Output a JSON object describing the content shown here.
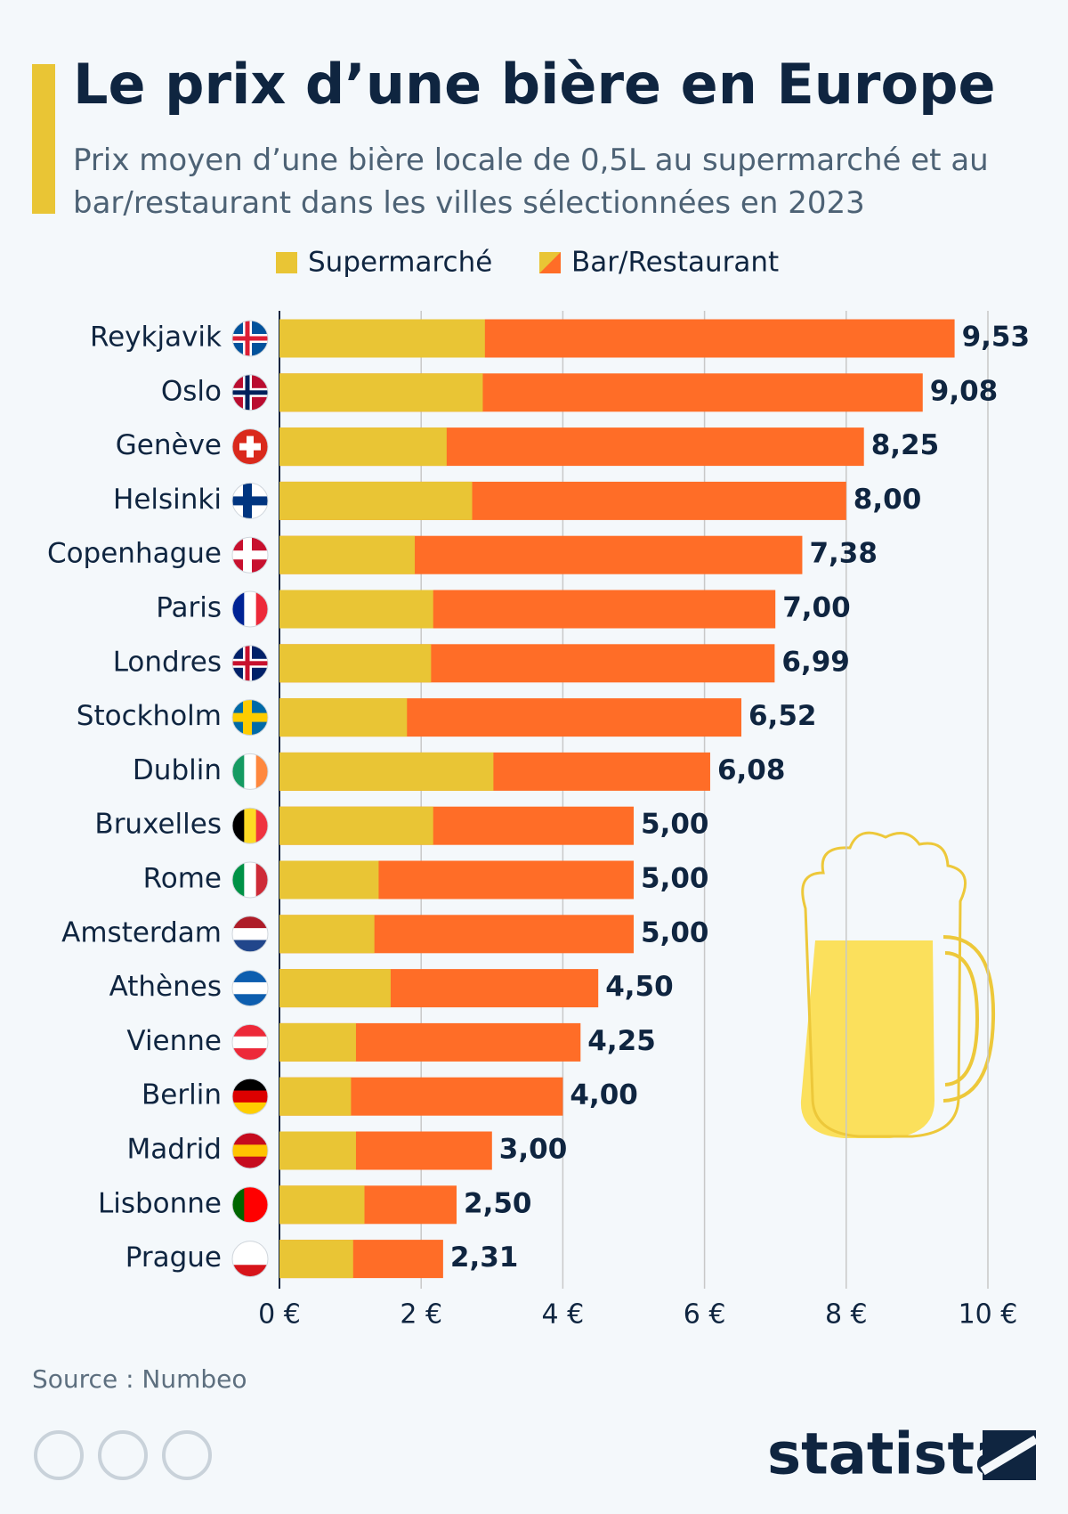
{
  "chart_data": {
    "type": "bar",
    "orientation": "horizontal",
    "title": "Le prix d’une bière en Europe",
    "subtitle": "Prix moyen d’une bière locale de 0,5L au supermarché et au bar/restaurant dans les villes sélectionnées en 2023",
    "categories": [
      "Reykjavik",
      "Oslo",
      "Genève",
      "Helsinki",
      "Copenhague",
      "Paris",
      "Londres",
      "Stockholm",
      "Dublin",
      "Bruxelles",
      "Rome",
      "Amsterdam",
      "Athènes",
      "Vienne",
      "Berlin",
      "Madrid",
      "Lisbonne",
      "Prague"
    ],
    "series": [
      {
        "name": "Supermarché",
        "color": "#e9c535",
        "values": [
          2.9,
          2.87,
          2.36,
          2.72,
          1.91,
          2.17,
          2.14,
          1.8,
          3.02,
          2.17,
          1.4,
          1.34,
          1.57,
          1.08,
          1.01,
          1.08,
          1.2,
          1.04
        ]
      },
      {
        "name": "Bar/Restaurant",
        "color": "#ff6d27",
        "values": [
          9.53,
          9.08,
          8.25,
          8.0,
          7.38,
          7.0,
          6.99,
          6.52,
          6.08,
          5.0,
          5.0,
          5.0,
          4.5,
          4.25,
          4.0,
          3.0,
          2.5,
          2.31
        ],
        "value_labels": [
          "9,53",
          "9,08",
          "8,25",
          "8,00",
          "7,38",
          "7,00",
          "6,99",
          "6,52",
          "6,08",
          "5,00",
          "5,00",
          "5,00",
          "4,50",
          "4,25",
          "4,00",
          "3,00",
          "2,50",
          "2,31"
        ]
      }
    ],
    "xlim": [
      0,
      10
    ],
    "xticks": [
      {
        "value": 0,
        "label": "0 €"
      },
      {
        "value": 2,
        "label": "2 €"
      },
      {
        "value": 4,
        "label": "4 €"
      },
      {
        "value": 6,
        "label": "6 €"
      },
      {
        "value": 8,
        "label": "8 €"
      },
      {
        "value": 10,
        "label": "10 €"
      }
    ],
    "grid": true,
    "source": "Source : Numbeo",
    "brand": "statista"
  }
}
